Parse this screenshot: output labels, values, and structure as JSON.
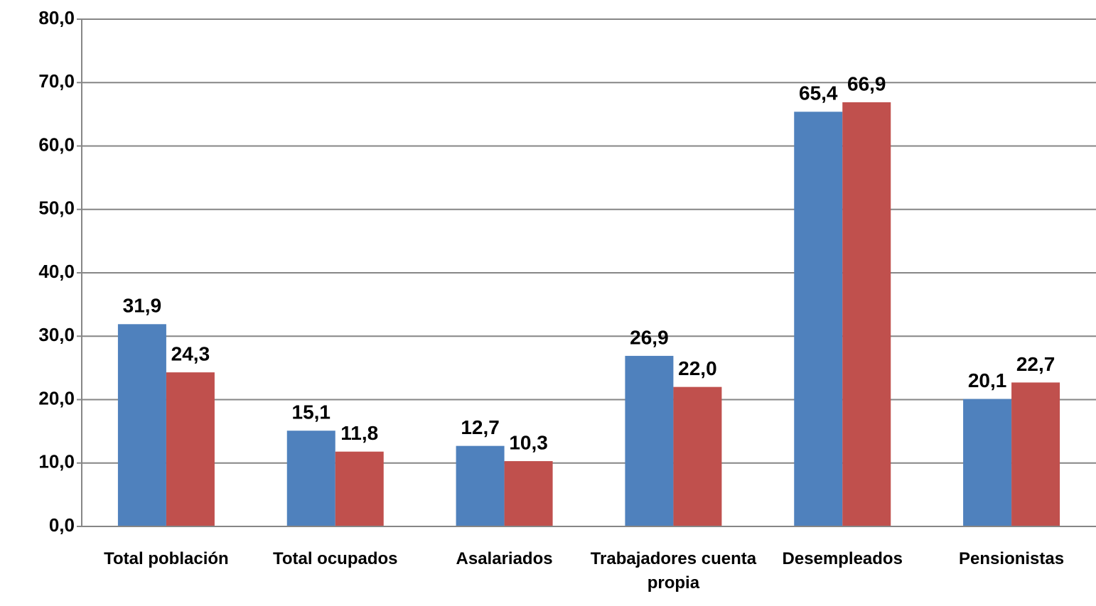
{
  "chart_data": {
    "type": "bar",
    "categories": [
      "Total población",
      "Total ocupados",
      "Asalariados",
      "Trabajadores cuenta propia",
      "Desempleados",
      "Pensionistas"
    ],
    "series": [
      {
        "color": "#4f81bd",
        "values": [
          31.9,
          15.1,
          12.7,
          26.9,
          65.4,
          20.1
        ],
        "value_labels": [
          "31,9",
          "15,1",
          "12,7",
          "26,9",
          "65,4",
          "20,1"
        ]
      },
      {
        "color": "#c0504d",
        "values": [
          24.3,
          11.8,
          10.3,
          22.0,
          66.9,
          22.7
        ],
        "value_labels": [
          "24,3",
          "11,8",
          "10,3",
          "22,0",
          "66,9",
          "22,7"
        ]
      }
    ],
    "ylim": [
      0,
      80
    ],
    "yticks": [
      {
        "value": 0,
        "label": "0,0"
      },
      {
        "value": 10,
        "label": "10,0"
      },
      {
        "value": 20,
        "label": "20,0"
      },
      {
        "value": 30,
        "label": "30,0"
      },
      {
        "value": 40,
        "label": "40,0"
      },
      {
        "value": 50,
        "label": "50,0"
      },
      {
        "value": 60,
        "label": "60,0"
      },
      {
        "value": 70,
        "label": "70,0"
      },
      {
        "value": 80,
        "label": "80,0"
      }
    ],
    "grid": true
  }
}
